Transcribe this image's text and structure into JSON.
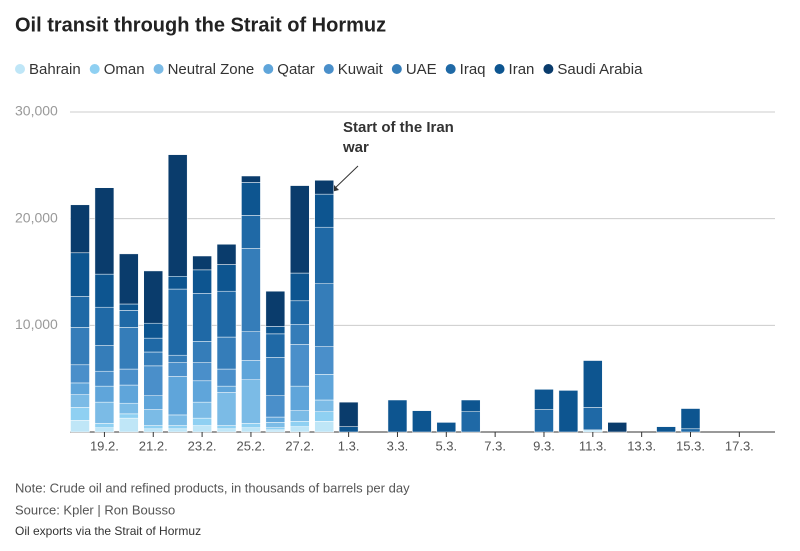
{
  "chart_data": {
    "type": "stacked_bar",
    "title": "Oil transit through the Strait of Hormuz",
    "annotation": "Start of the Iran war",
    "note": "Note: Crude oil and refined products, in thousands of barrels per day",
    "source": "Source: Kpler | Ron Bousso",
    "footer": "Oil exports via the Strait of Hormuz",
    "categories": [
      null,
      "19.2.",
      null,
      "21.2.",
      null,
      "23.2.",
      null,
      "25.2.",
      null,
      "27.2.",
      null,
      "1.3.",
      null,
      "3.3.",
      null,
      "5.3.",
      null,
      "7.3.",
      null,
      "9.3.",
      null,
      "11.3.",
      null,
      "13.3.",
      null,
      "15.3.",
      null,
      "17.3."
    ],
    "ylim": [
      0,
      30000
    ],
    "yticks": [
      {
        "value": 10000,
        "label": "10,000"
      },
      {
        "value": 20000,
        "label": "20,000"
      },
      {
        "value": 30000,
        "label": "30,000"
      }
    ],
    "grid": true,
    "series": [
      {
        "name": "Bahrain",
        "color": "#bfe6f7",
        "values": [
          1100,
          400,
          1300,
          300,
          300,
          600,
          300,
          400,
          200,
          500,
          1000,
          0,
          0,
          0,
          0,
          0,
          0,
          0,
          0,
          0,
          0,
          200,
          0,
          0,
          0,
          0,
          0,
          0
        ]
      },
      {
        "name": "Oman",
        "color": "#8fd0f2",
        "values": [
          1200,
          400,
          400,
          300,
          300,
          700,
          300,
          400,
          200,
          500,
          900,
          0,
          0,
          0,
          0,
          0,
          0,
          0,
          0,
          0,
          0,
          0,
          0,
          0,
          0,
          0,
          0,
          0
        ]
      },
      {
        "name": "Neutral Zone",
        "color": "#7bbbe6",
        "values": [
          1200,
          2000,
          1000,
          1500,
          1000,
          1500,
          3100,
          4100,
          500,
          1000,
          1100,
          0,
          0,
          0,
          0,
          0,
          0,
          0,
          0,
          0,
          0,
          0,
          0,
          0,
          0,
          0,
          0,
          0
        ]
      },
      {
        "name": "Qatar",
        "color": "#5fa5da",
        "values": [
          1100,
          1500,
          1700,
          1300,
          3600,
          2000,
          600,
          1800,
          500,
          2300,
          2400,
          0,
          0,
          0,
          0,
          0,
          0,
          0,
          0,
          0,
          0,
          0,
          0,
          0,
          0,
          0,
          0,
          0
        ]
      },
      {
        "name": "Kuwait",
        "color": "#4a8fca",
        "values": [
          1700,
          1400,
          1500,
          2800,
          1300,
          1700,
          1600,
          2700,
          2000,
          3900,
          2600,
          0,
          0,
          0,
          0,
          0,
          0,
          0,
          0,
          0,
          0,
          0,
          0,
          0,
          0,
          0,
          0,
          0
        ]
      },
      {
        "name": "UAE",
        "color": "#357db9",
        "values": [
          3500,
          2400,
          3900,
          1300,
          700,
          2000,
          3000,
          7800,
          3600,
          1900,
          5900,
          0,
          0,
          0,
          0,
          0,
          0,
          0,
          0,
          0,
          0,
          0,
          0,
          0,
          0,
          0,
          0,
          0
        ]
      },
      {
        "name": "Iraq",
        "color": "#1f69a6",
        "values": [
          2900,
          3600,
          1600,
          1300,
          6200,
          4500,
          4300,
          3100,
          2200,
          2200,
          5300,
          0,
          0,
          0,
          0,
          0,
          1900,
          0,
          0,
          2100,
          0,
          2100,
          0,
          0,
          0,
          300,
          0,
          0
        ]
      },
      {
        "name": "Iran",
        "color": "#0d5590",
        "values": [
          4100,
          3100,
          600,
          1400,
          1200,
          2200,
          2500,
          3100,
          700,
          2600,
          3100,
          500,
          0,
          3000,
          2000,
          900,
          1100,
          0,
          0,
          1900,
          3900,
          4400,
          0,
          0,
          500,
          1900,
          0,
          0
        ]
      },
      {
        "name": "Saudi Arabia",
        "color": "#0a3c6c",
        "values": [
          4500,
          8100,
          4700,
          4900,
          11400,
          1300,
          1900,
          600,
          3300,
          8200,
          1300,
          2300,
          0,
          0,
          0,
          0,
          0,
          0,
          0,
          0,
          0,
          0,
          900,
          0,
          0,
          0,
          0,
          0
        ]
      }
    ]
  }
}
